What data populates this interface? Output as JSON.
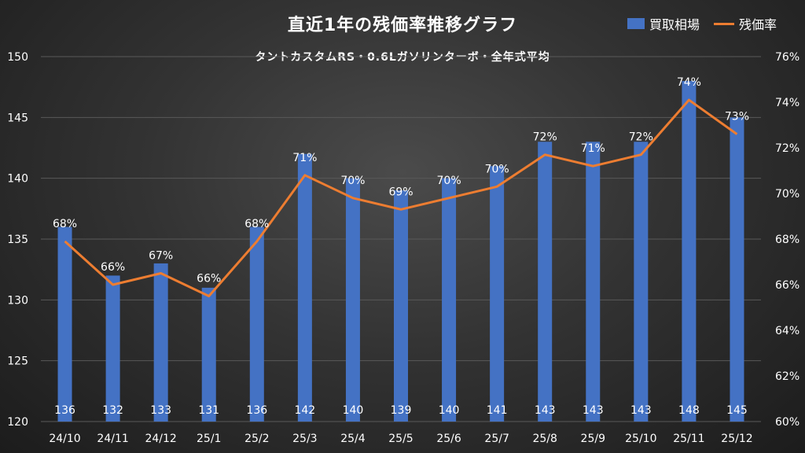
{
  "chart_data": {
    "type": "bar",
    "title": "直近1年の残価率推移グラフ",
    "subtitle": "タントカスタムRS・0.6Lガソリンターボ・全年式平均",
    "categories": [
      "24/10",
      "24/11",
      "24/12",
      "25/1",
      "25/2",
      "25/3",
      "25/4",
      "25/5",
      "25/6",
      "25/7",
      "25/8",
      "25/9",
      "25/10",
      "25/11",
      "25/12"
    ],
    "series": [
      {
        "name": "買取相場",
        "type": "bar",
        "axis": "left",
        "values": [
          136,
          132,
          133,
          131,
          136,
          142,
          140,
          139,
          140,
          141,
          143,
          143,
          143,
          148,
          145
        ],
        "labels": [
          "136",
          "132",
          "133",
          "131",
          "136",
          "142",
          "140",
          "139",
          "140",
          "141",
          "143",
          "143",
          "143",
          "148",
          "145"
        ]
      },
      {
        "name": "残価率",
        "type": "line",
        "axis": "right",
        "values": [
          67.9,
          66.0,
          66.5,
          65.5,
          67.9,
          70.8,
          69.8,
          69.3,
          69.8,
          70.3,
          71.7,
          71.2,
          71.7,
          74.1,
          72.6
        ],
        "labels": [
          "68%",
          "66%",
          "67%",
          "66%",
          "68%",
          "71%",
          "70%",
          "69%",
          "70%",
          "70%",
          "72%",
          "71%",
          "72%",
          "74%",
          "73%"
        ]
      }
    ],
    "y_left": {
      "min": 120,
      "max": 150,
      "ticks": [
        "120",
        "125",
        "130",
        "135",
        "140",
        "145",
        "150"
      ]
    },
    "y_right": {
      "min": 60,
      "max": 76,
      "ticks": [
        "60%",
        "62%",
        "64%",
        "66%",
        "68%",
        "70%",
        "72%",
        "74%",
        "76%"
      ]
    },
    "grid": true,
    "legend_position": "top-right",
    "colors": {
      "bar": "#4472c4",
      "line": "#ed7d31",
      "grid": "#595959"
    }
  }
}
